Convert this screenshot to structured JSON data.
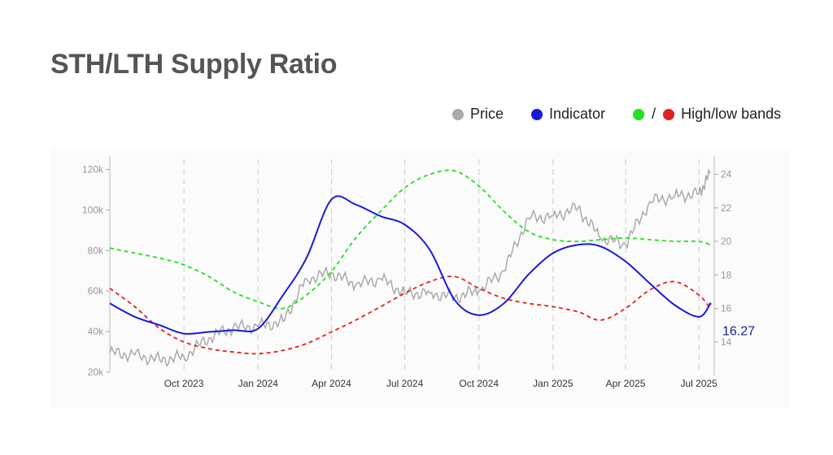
{
  "page": {
    "title": "STH/LTH Supply Ratio"
  },
  "legend": {
    "price": "Price",
    "indicator": "Indicator",
    "bands": "High/low bands",
    "separator": "/"
  },
  "colors": {
    "price": "#aaaaaa",
    "indicator": "#1a1adb",
    "high_band": "#22e022",
    "low_band": "#e02222",
    "current_label": "#1a1a9a"
  },
  "chart_data": {
    "type": "line",
    "title": "STH/LTH Supply Ratio",
    "current_value_label": "16.27",
    "x_ticks": [
      "Oct 2023",
      "Jan 2024",
      "Apr 2024",
      "Jul 2024",
      "Oct 2024",
      "Jan 2025",
      "Apr 2025",
      "Jul 2025"
    ],
    "x_tick_dates": [
      "2023-10-01",
      "2024-01-01",
      "2024-04-01",
      "2024-07-01",
      "2024-10-01",
      "2025-01-01",
      "2025-04-01",
      "2025-07-01"
    ],
    "x_range": [
      "2023-07-01",
      "2025-07-20"
    ],
    "y_left": {
      "range": [
        20000,
        125000
      ],
      "ticks": [
        20000,
        40000,
        60000,
        80000,
        100000,
        120000
      ],
      "tick_labels": [
        "20k",
        "40k",
        "60k",
        "80k",
        "100k",
        "120k"
      ]
    },
    "y_right": {
      "range": [
        12.2,
        24.9
      ],
      "ticks": [
        14,
        16,
        18,
        20,
        22,
        24
      ],
      "tick_labels": [
        "14",
        "16",
        "18",
        "20",
        "22",
        "24"
      ]
    },
    "grid": "vertical dashed",
    "series": [
      {
        "name": "Price",
        "axis": "left",
        "x": [
          "2023-07-01",
          "2023-08-01",
          "2023-09-01",
          "2023-10-01",
          "2023-11-01",
          "2023-12-01",
          "2024-01-01",
          "2024-02-01",
          "2024-03-01",
          "2024-04-01",
          "2024-05-01",
          "2024-06-01",
          "2024-07-01",
          "2024-08-01",
          "2024-09-01",
          "2024-10-01",
          "2024-11-01",
          "2024-12-01",
          "2025-01-01",
          "2025-02-01",
          "2025-03-01",
          "2025-04-01",
          "2025-05-01",
          "2025-06-01",
          "2025-07-01",
          "2025-07-15"
        ],
        "y": [
          29500,
          28500,
          26000,
          27500,
          37000,
          42000,
          42500,
          45000,
          66000,
          69000,
          63000,
          66000,
          59000,
          59000,
          57000,
          60000,
          70000,
          96000,
          97000,
          101000,
          86000,
          83000,
          104000,
          107000,
          108000,
          118000
        ]
      },
      {
        "name": "Indicator",
        "axis": "right",
        "x": [
          "2023-07-01",
          "2023-08-01",
          "2023-09-01",
          "2023-10-01",
          "2023-11-01",
          "2023-12-01",
          "2024-01-01",
          "2024-02-01",
          "2024-03-01",
          "2024-04-01",
          "2024-05-01",
          "2024-06-01",
          "2024-07-01",
          "2024-08-01",
          "2024-09-01",
          "2024-10-01",
          "2024-11-01",
          "2024-12-01",
          "2025-01-01",
          "2025-02-01",
          "2025-03-01",
          "2025-04-01",
          "2025-05-01",
          "2025-06-01",
          "2025-07-01",
          "2025-07-15"
        ],
        "y": [
          16.3,
          15.5,
          15.0,
          14.5,
          14.6,
          14.7,
          14.8,
          16.8,
          19.0,
          22.5,
          22.2,
          21.5,
          21.0,
          19.5,
          16.5,
          15.6,
          16.3,
          18.0,
          19.3,
          19.8,
          19.7,
          18.8,
          17.5,
          16.2,
          15.5,
          16.27
        ]
      },
      {
        "name": "High",
        "axis": "right",
        "x": [
          "2023-07-01",
          "2023-08-01",
          "2023-09-01",
          "2023-10-01",
          "2023-11-01",
          "2023-12-01",
          "2024-01-01",
          "2024-02-01",
          "2024-03-01",
          "2024-04-01",
          "2024-05-01",
          "2024-06-01",
          "2024-07-01",
          "2024-08-01",
          "2024-09-01",
          "2024-10-01",
          "2024-11-01",
          "2024-12-01",
          "2025-01-01",
          "2025-02-01",
          "2025-03-01",
          "2025-04-01",
          "2025-05-01",
          "2025-06-01",
          "2025-07-01",
          "2025-07-15"
        ],
        "y": [
          19.6,
          19.3,
          19.0,
          18.6,
          17.9,
          17.0,
          16.4,
          16.0,
          16.8,
          18.2,
          20.2,
          21.8,
          23.2,
          24.0,
          24.2,
          23.3,
          21.8,
          20.6,
          20.1,
          20.0,
          20.1,
          20.2,
          20.1,
          20.0,
          20.0,
          19.8
        ]
      },
      {
        "name": "Low",
        "axis": "right",
        "x": [
          "2023-07-01",
          "2023-08-01",
          "2023-09-01",
          "2023-10-01",
          "2023-11-01",
          "2023-12-01",
          "2024-01-01",
          "2024-02-01",
          "2024-03-01",
          "2024-04-01",
          "2024-05-01",
          "2024-06-01",
          "2024-07-01",
          "2024-08-01",
          "2024-09-01",
          "2024-10-01",
          "2024-11-01",
          "2024-12-01",
          "2025-01-01",
          "2025-02-01",
          "2025-03-01",
          "2025-04-01",
          "2025-05-01",
          "2025-06-01",
          "2025-07-01",
          "2025-07-15"
        ],
        "y": [
          17.2,
          16.1,
          14.8,
          14.0,
          13.6,
          13.4,
          13.3,
          13.5,
          13.9,
          14.6,
          15.3,
          16.1,
          16.9,
          17.6,
          17.9,
          17.2,
          16.6,
          16.3,
          16.1,
          15.8,
          15.3,
          16.0,
          17.1,
          17.6,
          16.8,
          16.0
        ]
      }
    ]
  }
}
